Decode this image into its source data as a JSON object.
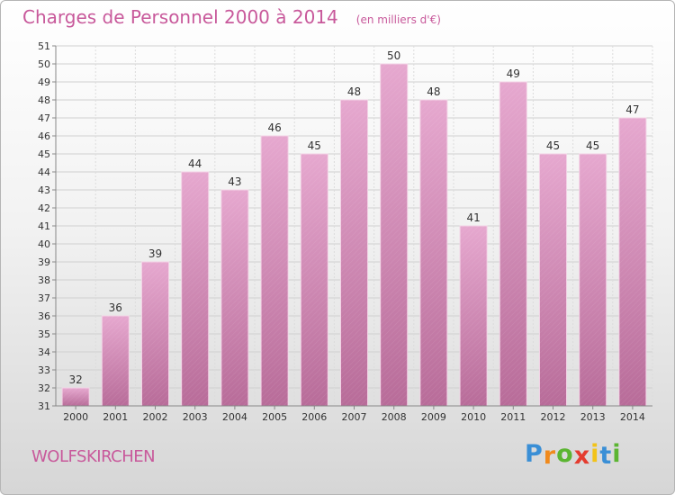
{
  "header": {
    "title": "Charges de Personnel 2000 à 2014",
    "subtitle": "(en milliers d'€)"
  },
  "footer": {
    "commune": "WOLFSKIRCHEN",
    "logo_letters": [
      {
        "char": "P",
        "color": "#3a8fd6"
      },
      {
        "char": "r",
        "color": "#f08a1c"
      },
      {
        "char": "o",
        "color": "#5bb531"
      },
      {
        "char": "x",
        "color": "#e43c2f"
      },
      {
        "char": "i",
        "color": "#f2c318"
      },
      {
        "char": "t",
        "color": "#3a8fd6"
      },
      {
        "char": "i",
        "color": "#5bb531"
      }
    ]
  },
  "chart_data": {
    "type": "bar",
    "categories": [
      "2000",
      "2001",
      "2002",
      "2003",
      "2004",
      "2005",
      "2006",
      "2007",
      "2008",
      "2009",
      "2010",
      "2011",
      "2012",
      "2013",
      "2014"
    ],
    "values": [
      32,
      36,
      39,
      44,
      43,
      46,
      45,
      48,
      50,
      48,
      41,
      49,
      45,
      45,
      47
    ],
    "data_labels": [
      "32",
      "36",
      "39",
      "44",
      "43",
      "46",
      "45",
      "48",
      "50",
      "48",
      "41",
      "49",
      "45",
      "45",
      "47"
    ],
    "y_ticks": [
      "31",
      "32",
      "33",
      "34",
      "35",
      "36",
      "37",
      "38",
      "39",
      "40",
      "41",
      "42",
      "43",
      "44",
      "45",
      "46",
      "47",
      "48",
      "49",
      "50",
      "51"
    ],
    "ylim": [
      31,
      51
    ],
    "grid": true,
    "legend": "none",
    "bar_color_top": "#e6a8cf",
    "bar_color_bottom": "#b86c99",
    "label_color": "#333333"
  }
}
